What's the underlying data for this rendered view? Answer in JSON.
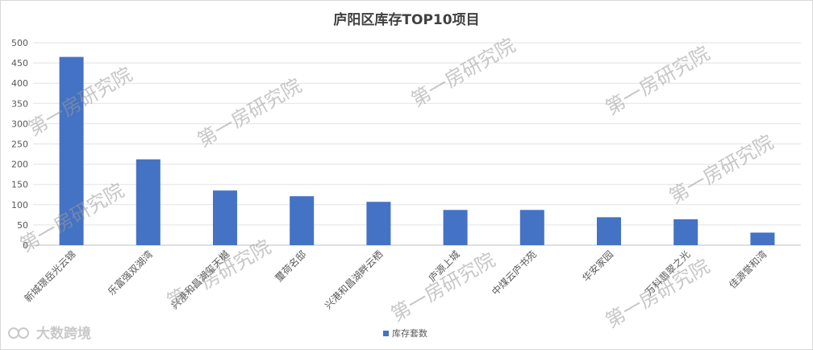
{
  "chart_data": {
    "type": "bar",
    "title": "庐阳区库存TOP10项目",
    "categories": [
      "新城璟岳光云锦",
      "乐富强双湖湾",
      "兴港和昌湖玺天樾",
      "璽荷名邸",
      "兴港和昌湖畔云栖",
      "庐源上城",
      "中煤云庐书苑",
      "华安家园",
      "万科翡翠之光",
      "佳源誉和湾"
    ],
    "series": [
      {
        "name": "库存套数",
        "values": [
          465,
          212,
          135,
          121,
          107,
          87,
          87,
          69,
          64,
          31
        ]
      }
    ],
    "ylim": [
      0,
      500
    ],
    "yticks": [
      0,
      50,
      100,
      150,
      200,
      250,
      300,
      350,
      400,
      450,
      500
    ],
    "grid": true,
    "legend_position": "bottom",
    "bar_color": "#4472c4"
  },
  "watermark": {
    "text": "第一房研究院",
    "brand": "大数跨境"
  }
}
